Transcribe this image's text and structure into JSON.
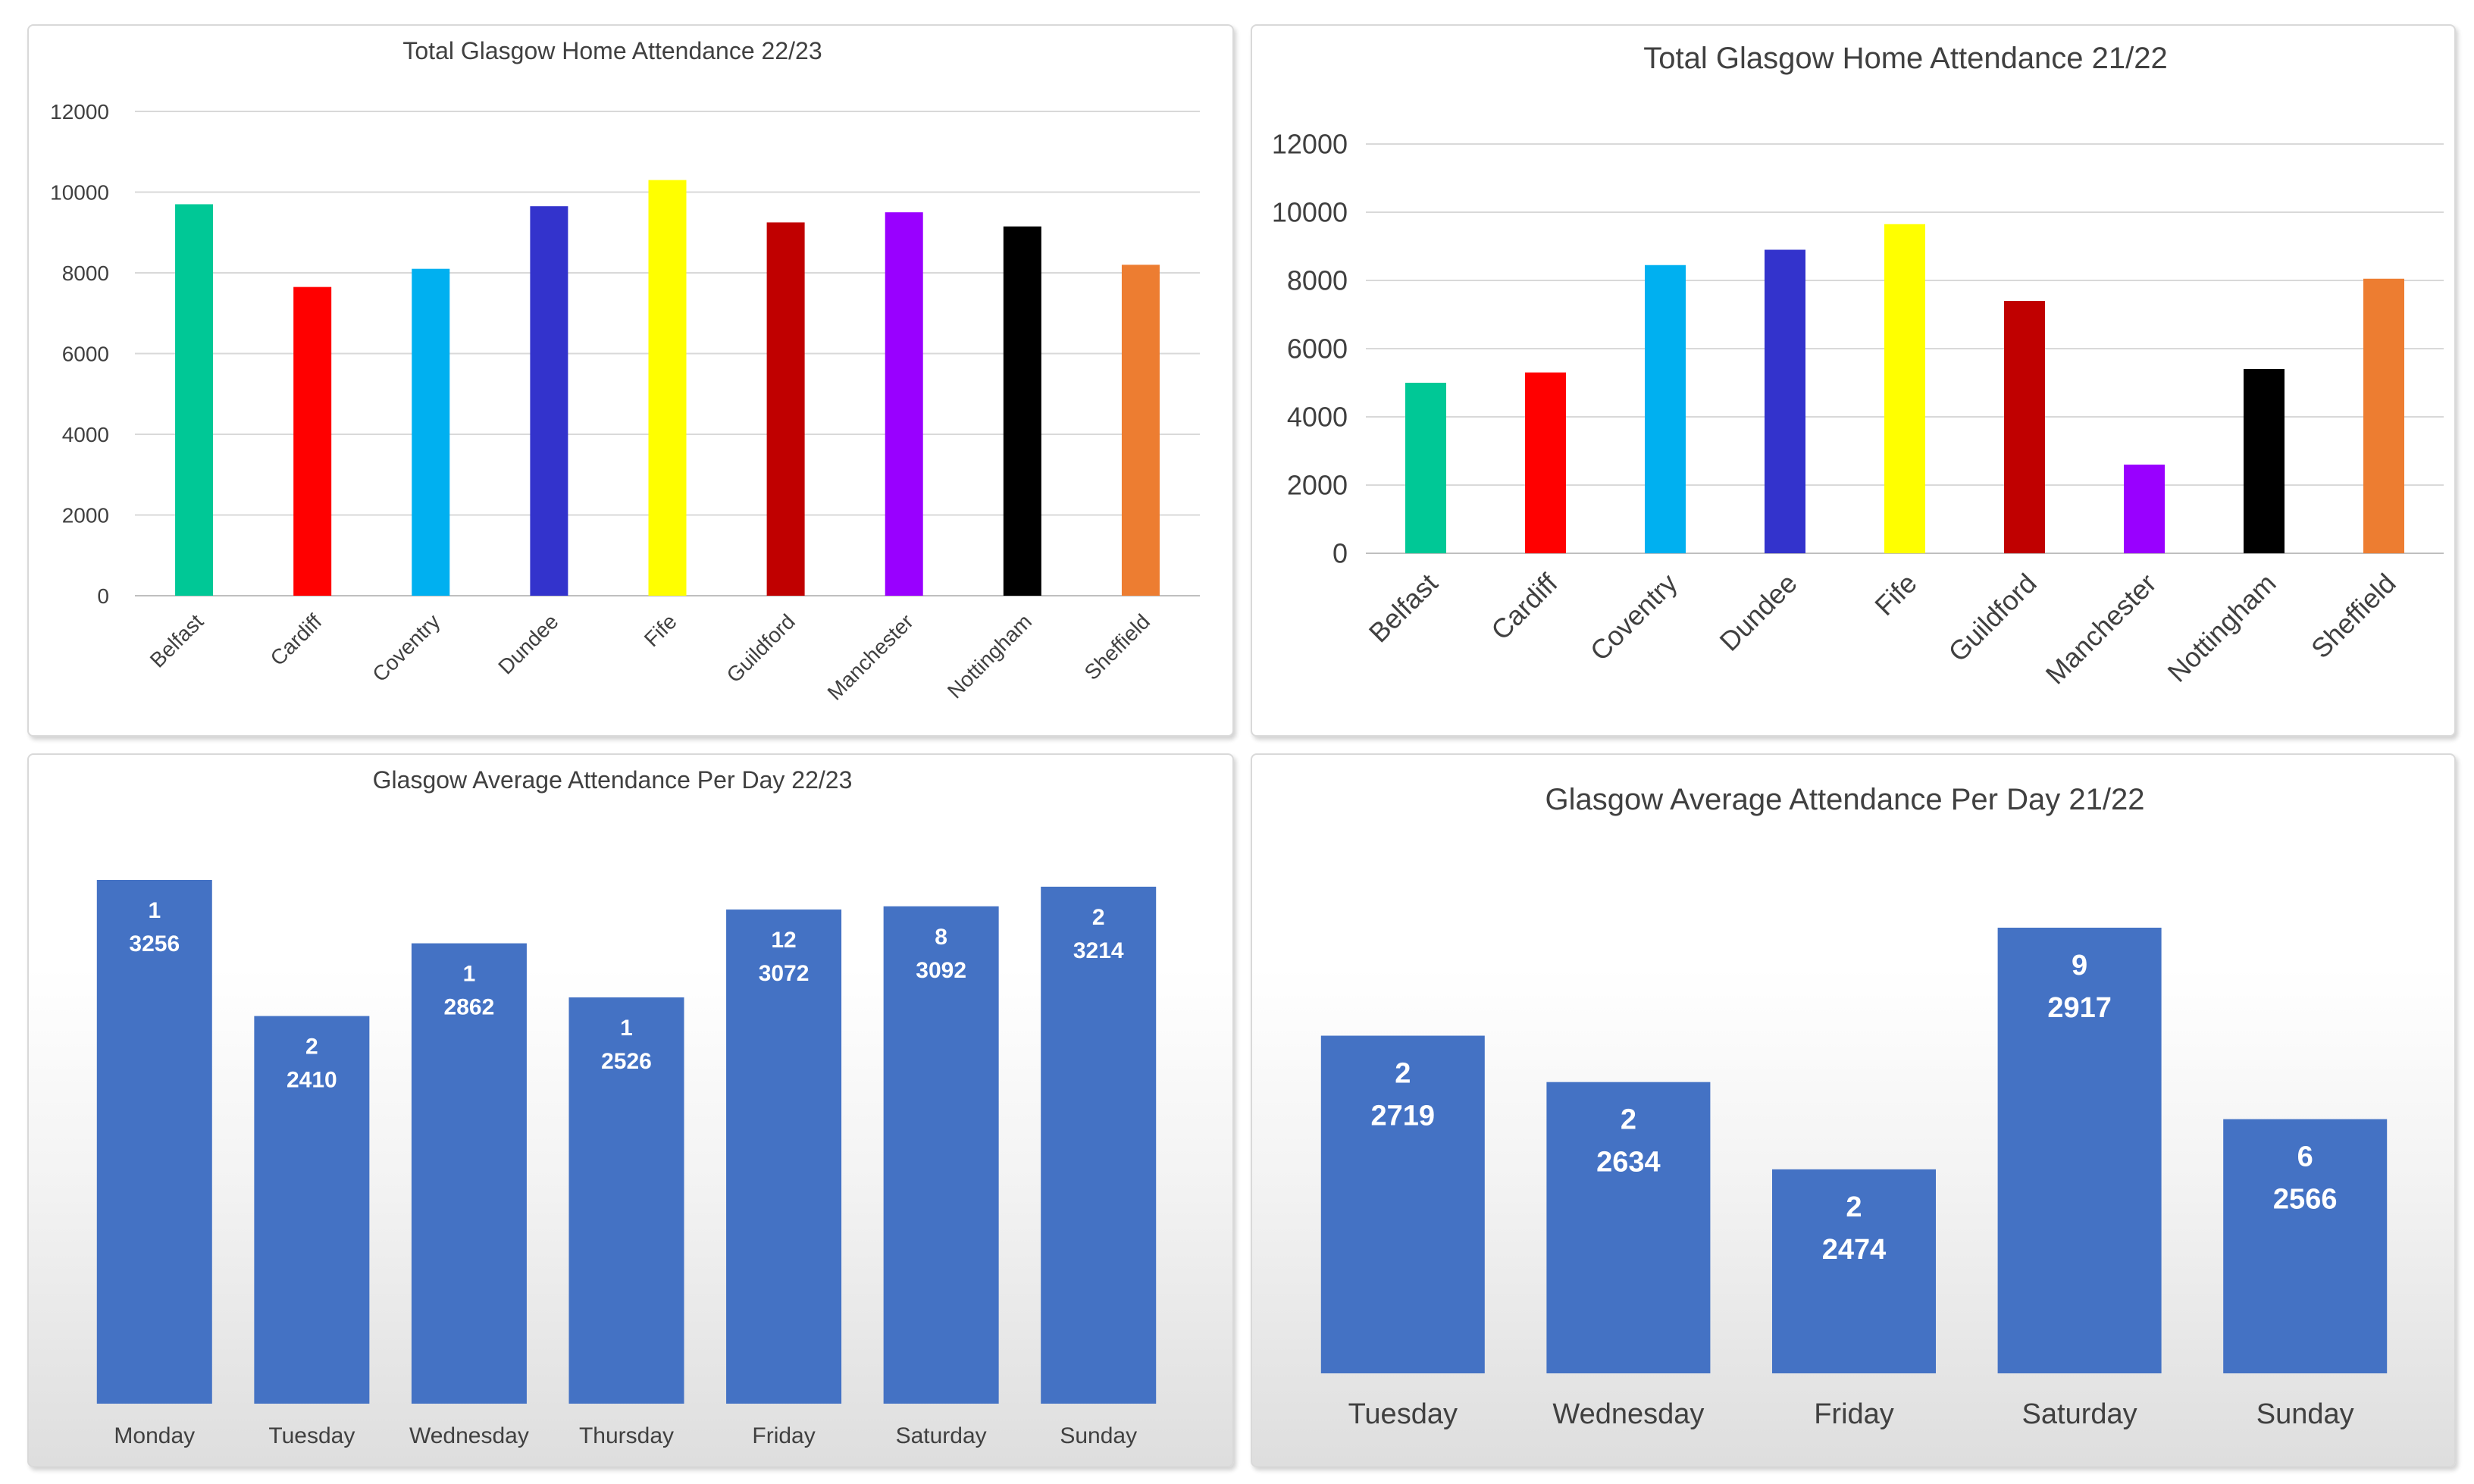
{
  "chart_data": [
    {
      "id": "total-2223",
      "type": "bar",
      "title": "Total Glasgow Home Attendance 22/23",
      "categories": [
        "Belfast",
        "Cardiff",
        "Coventry",
        "Dundee",
        "Fife",
        "Guildford",
        "Manchester",
        "Nottingham",
        "Sheffield"
      ],
      "values": [
        9700,
        7650,
        8100,
        9650,
        10300,
        9250,
        9500,
        9150,
        8200
      ],
      "colors": [
        "#00c896",
        "#ff0000",
        "#00b0f0",
        "#3333cc",
        "#ffff00",
        "#c00000",
        "#9900ff",
        "#000000",
        "#ed7d31"
      ],
      "ylim": [
        0,
        12000
      ],
      "yticks": [
        0,
        2000,
        4000,
        6000,
        8000,
        10000,
        12000
      ],
      "grid": true
    },
    {
      "id": "total-2122",
      "type": "bar",
      "title": "Total Glasgow Home Attendance 21/22",
      "categories": [
        "Belfast",
        "Cardiff",
        "Coventry",
        "Dundee",
        "Fife",
        "Guildford",
        "Manchester",
        "Nottingham",
        "Sheffield"
      ],
      "values": [
        5000,
        5300,
        8450,
        8900,
        9650,
        7400,
        2600,
        5400,
        8050
      ],
      "colors": [
        "#00c896",
        "#ff0000",
        "#00b0f0",
        "#3333cc",
        "#ffff00",
        "#c00000",
        "#9900ff",
        "#000000",
        "#ed7d31"
      ],
      "ylim": [
        0,
        12000
      ],
      "yticks": [
        0,
        2000,
        4000,
        6000,
        8000,
        10000,
        12000
      ],
      "grid": true
    },
    {
      "id": "avg-2223",
      "type": "bar",
      "title": "Glasgow Average Attendance Per Day 22/23",
      "categories": [
        "Monday",
        "Tuesday",
        "Wednesday",
        "Thursday",
        "Friday",
        "Saturday",
        "Sunday"
      ],
      "values": [
        3256,
        2410,
        2862,
        2526,
        3072,
        3092,
        3214
      ],
      "counts": [
        1,
        2,
        1,
        1,
        12,
        8,
        2
      ],
      "ylim": [
        0,
        3256
      ],
      "color": "#4472c4",
      "grid": false
    },
    {
      "id": "avg-2122",
      "type": "bar",
      "title": "Glasgow Average Attendance Per Day 21/22",
      "categories": [
        "Tuesday",
        "Wednesday",
        "Friday",
        "Saturday",
        "Sunday"
      ],
      "values": [
        2719,
        2634,
        2474,
        2917,
        2566
      ],
      "counts": [
        2,
        2,
        2,
        9,
        6
      ],
      "ylim": [
        2100,
        2917
      ],
      "color": "#4472c4",
      "grid": false
    }
  ]
}
